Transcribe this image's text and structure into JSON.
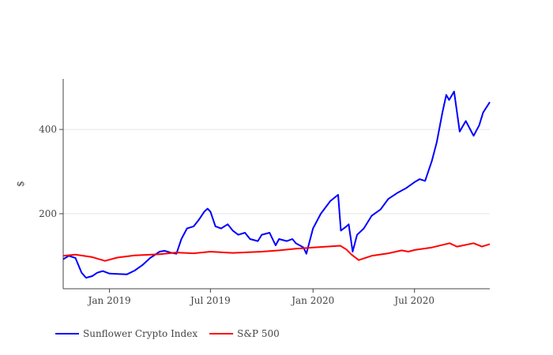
{
  "chart_data": {
    "type": "line",
    "title": "",
    "xlabel": "",
    "ylabel": "$",
    "ylim": [
      22,
      520
    ],
    "xlim": [
      "2018-10-10",
      "2020-11-13"
    ],
    "yticks": [
      200,
      400
    ],
    "ytick_labels": [
      "200",
      "400"
    ],
    "xticks": [
      "2019-01-01",
      "2019-07-01",
      "2020-01-01",
      "2020-07-01"
    ],
    "xtick_labels": [
      "Jan 2019",
      "Jul 2019",
      "Jan 2020",
      "Jul 2020"
    ],
    "grid": "horizontal",
    "legend_position": "bottom",
    "series": [
      {
        "name": "Sunflower Crypto Index",
        "color": "#0000ff",
        "x": [
          "2018-10-10",
          "2018-10-20",
          "2018-11-01",
          "2018-11-12",
          "2018-11-20",
          "2018-12-01",
          "2018-12-10",
          "2018-12-20",
          "2019-01-01",
          "2019-01-15",
          "2019-02-01",
          "2019-02-15",
          "2019-03-01",
          "2019-03-15",
          "2019-04-01",
          "2019-04-10",
          "2019-04-20",
          "2019-05-01",
          "2019-05-10",
          "2019-05-20",
          "2019-06-01",
          "2019-06-10",
          "2019-06-20",
          "2019-06-26",
          "2019-07-01",
          "2019-07-10",
          "2019-07-20",
          "2019-08-01",
          "2019-08-10",
          "2019-08-20",
          "2019-09-01",
          "2019-09-10",
          "2019-09-24",
          "2019-10-01",
          "2019-10-15",
          "2019-10-26",
          "2019-11-01",
          "2019-11-15",
          "2019-11-25",
          "2019-12-01",
          "2019-12-15",
          "2019-12-20",
          "2020-01-01",
          "2020-01-15",
          "2020-02-01",
          "2020-02-15",
          "2020-02-20",
          "2020-03-01",
          "2020-03-05",
          "2020-03-12",
          "2020-03-20",
          "2020-04-01",
          "2020-04-15",
          "2020-05-01",
          "2020-05-15",
          "2020-06-01",
          "2020-06-15",
          "2020-07-01",
          "2020-07-10",
          "2020-07-20",
          "2020-08-01",
          "2020-08-10",
          "2020-08-20",
          "2020-08-27",
          "2020-09-01",
          "2020-09-10",
          "2020-09-20",
          "2020-10-01",
          "2020-10-15",
          "2020-10-25",
          "2020-11-01",
          "2020-11-13"
        ],
        "values": [
          92,
          100,
          95,
          60,
          48,
          52,
          60,
          64,
          58,
          57,
          56,
          65,
          78,
          95,
          110,
          112,
          108,
          105,
          140,
          165,
          170,
          185,
          205,
          212,
          205,
          170,
          165,
          175,
          160,
          150,
          155,
          140,
          135,
          150,
          155,
          125,
          140,
          135,
          140,
          130,
          120,
          105,
          165,
          200,
          230,
          245,
          160,
          170,
          175,
          110,
          150,
          165,
          195,
          210,
          235,
          250,
          260,
          275,
          282,
          278,
          325,
          370,
          440,
          482,
          470,
          490,
          395,
          420,
          385,
          410,
          440,
          465
        ]
      },
      {
        "name": "S&P 500",
        "color": "#ff0000",
        "x": [
          "2018-10-10",
          "2018-11-01",
          "2018-12-01",
          "2018-12-24",
          "2019-01-15",
          "2019-02-15",
          "2019-04-01",
          "2019-05-01",
          "2019-06-01",
          "2019-07-01",
          "2019-08-10",
          "2019-10-01",
          "2019-11-01",
          "2019-12-01",
          "2020-01-01",
          "2020-02-19",
          "2020-03-01",
          "2020-03-10",
          "2020-03-23",
          "2020-04-15",
          "2020-05-15",
          "2020-06-08",
          "2020-06-20",
          "2020-07-01",
          "2020-08-01",
          "2020-09-02",
          "2020-09-15",
          "2020-10-01",
          "2020-10-15",
          "2020-10-30",
          "2020-11-13"
        ],
        "values": [
          100,
          103,
          97,
          88,
          96,
          101,
          104,
          108,
          106,
          110,
          107,
          110,
          113,
          117,
          120,
          124,
          115,
          103,
          90,
          100,
          106,
          113,
          110,
          114,
          120,
          130,
          122,
          126,
          130,
          122,
          128
        ]
      }
    ]
  }
}
